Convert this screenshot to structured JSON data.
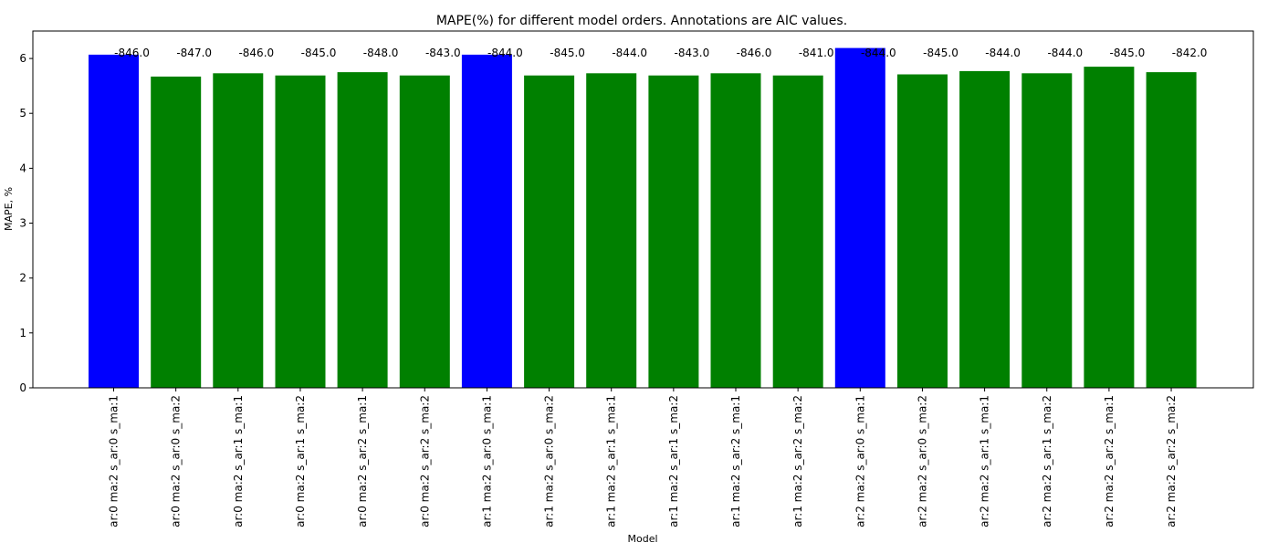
{
  "chart_data": {
    "type": "bar",
    "title": "MAPE(%) for different model orders. Annotations are AIC values.",
    "xlabel": "Model",
    "ylabel": "MAPE, %",
    "ylim": [
      0,
      6.5
    ],
    "yticks": [
      0,
      1,
      2,
      3,
      4,
      5,
      6
    ],
    "grid": false,
    "categories": [
      "ar:0 ma:2 s_ar:0 s_ma:1",
      "ar:0 ma:2 s_ar:0 s_ma:2",
      "ar:0 ma:2 s_ar:1 s_ma:1",
      "ar:0 ma:2 s_ar:1 s_ma:2",
      "ar:0 ma:2 s_ar:2 s_ma:1",
      "ar:0 ma:2 s_ar:2 s_ma:2",
      "ar:1 ma:2 s_ar:0 s_ma:1",
      "ar:1 ma:2 s_ar:0 s_ma:2",
      "ar:1 ma:2 s_ar:1 s_ma:1",
      "ar:1 ma:2 s_ar:1 s_ma:2",
      "ar:1 ma:2 s_ar:2 s_ma:1",
      "ar:1 ma:2 s_ar:2 s_ma:2",
      "ar:2 ma:2 s_ar:0 s_ma:1",
      "ar:2 ma:2 s_ar:0 s_ma:2",
      "ar:2 ma:2 s_ar:1 s_ma:1",
      "ar:2 ma:2 s_ar:1 s_ma:2",
      "ar:2 ma:2 s_ar:2 s_ma:1",
      "ar:2 ma:2 s_ar:2 s_ma:2"
    ],
    "values": [
      6.07,
      5.67,
      5.73,
      5.69,
      5.75,
      5.69,
      6.07,
      5.69,
      5.73,
      5.69,
      5.73,
      5.69,
      6.19,
      5.71,
      5.77,
      5.73,
      5.85,
      5.75
    ],
    "annotations": [
      "-846.0",
      "-847.0",
      "-846.0",
      "-845.0",
      "-848.0",
      "-843.0",
      "-844.0",
      "-845.0",
      "-844.0",
      "-843.0",
      "-846.0",
      "-841.0",
      "-844.0",
      "-845.0",
      "-844.0",
      "-844.0",
      "-845.0",
      "-842.0"
    ],
    "colors": [
      "#0000ff",
      "#008000",
      "#008000",
      "#008000",
      "#008000",
      "#008000",
      "#0000ff",
      "#008000",
      "#008000",
      "#008000",
      "#008000",
      "#008000",
      "#0000ff",
      "#008000",
      "#008000",
      "#008000",
      "#008000",
      "#008000"
    ]
  }
}
